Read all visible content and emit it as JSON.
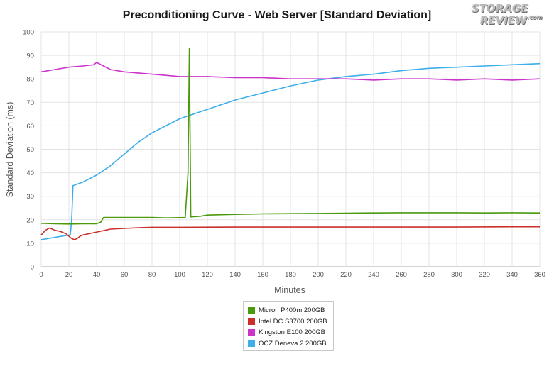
{
  "chart_data": {
    "type": "line",
    "title": "Preconditioning Curve - Web Server [Standard Deviation]",
    "xlabel": "Minutes",
    "ylabel": "Standard Deviation (ms)",
    "xlim": [
      0,
      360
    ],
    "ylim": [
      0,
      100
    ],
    "xticks": [
      0,
      20,
      40,
      60,
      80,
      100,
      120,
      140,
      160,
      180,
      200,
      220,
      240,
      260,
      280,
      300,
      320,
      340,
      360
    ],
    "yticks": [
      0,
      10,
      20,
      30,
      40,
      50,
      60,
      70,
      80,
      90,
      100
    ],
    "grid": true,
    "legend_position": "bottom-center",
    "series": [
      {
        "name": "Micron P400m 200GB",
        "color": "#4a9a0c",
        "x": [
          0,
          10,
          20,
          30,
          40,
          43,
          45,
          50,
          60,
          70,
          80,
          90,
          100,
          104,
          106,
          107,
          108,
          110,
          115,
          120,
          140,
          160,
          180,
          200,
          220,
          240,
          260,
          280,
          300,
          320,
          340,
          360
        ],
        "y": [
          18.5,
          18.3,
          18.2,
          18.3,
          18.3,
          19,
          21,
          21,
          21,
          21,
          21,
          20.8,
          20.9,
          21,
          40,
          93,
          21.2,
          21.3,
          21.5,
          22,
          22.3,
          22.5,
          22.6,
          22.7,
          22.8,
          22.9,
          23,
          23,
          23,
          22.9,
          23,
          22.9
        ]
      },
      {
        "name": "Intel DC S3700 200GB",
        "color": "#c9302c",
        "x": [
          0,
          3,
          6,
          10,
          14,
          18,
          20,
          22,
          24,
          26,
          28,
          30,
          34,
          38,
          42,
          46,
          50,
          60,
          70,
          80,
          100,
          140,
          180,
          220,
          260,
          300,
          340,
          360
        ],
        "y": [
          13.5,
          15.5,
          16.5,
          15.5,
          15,
          14,
          13,
          12,
          11.5,
          12,
          13,
          13.5,
          14,
          14.5,
          15,
          15.5,
          16,
          16.3,
          16.6,
          16.8,
          16.8,
          16.9,
          16.9,
          16.9,
          16.9,
          16.9,
          17,
          17
        ]
      },
      {
        "name": "Kingston E100 200GB",
        "color": "#cc33cc",
        "x": [
          0,
          10,
          20,
          30,
          38,
          40,
          50,
          60,
          70,
          80,
          90,
          100,
          110,
          120,
          140,
          160,
          180,
          200,
          220,
          240,
          260,
          280,
          300,
          320,
          340,
          360
        ],
        "y": [
          83,
          84,
          85,
          85.5,
          86,
          87,
          84,
          83,
          82.5,
          82,
          81.5,
          81,
          81,
          81,
          80.5,
          80.5,
          80,
          80,
          80,
          79.5,
          80,
          80,
          79.5,
          80,
          79.5,
          80
        ]
      },
      {
        "name": "OCZ Deneva 2 200GB",
        "color": "#3daee9",
        "x": [
          0,
          10,
          20,
          21,
          22,
          23,
          30,
          40,
          50,
          60,
          70,
          80,
          90,
          100,
          110,
          120,
          140,
          160,
          180,
          200,
          220,
          240,
          260,
          280,
          300,
          320,
          340,
          360
        ],
        "y": [
          11.5,
          12.5,
          13.5,
          13.5,
          20,
          34.5,
          36,
          39,
          43,
          48,
          53,
          57,
          60,
          63,
          65,
          67,
          71,
          74,
          77,
          79.5,
          81,
          82,
          83.5,
          84.5,
          85,
          85.5,
          86,
          86.5
        ]
      }
    ]
  },
  "logo": {
    "line1": "STORAGE",
    "line2": "REVIEW",
    "line2_suffix": ".com"
  }
}
